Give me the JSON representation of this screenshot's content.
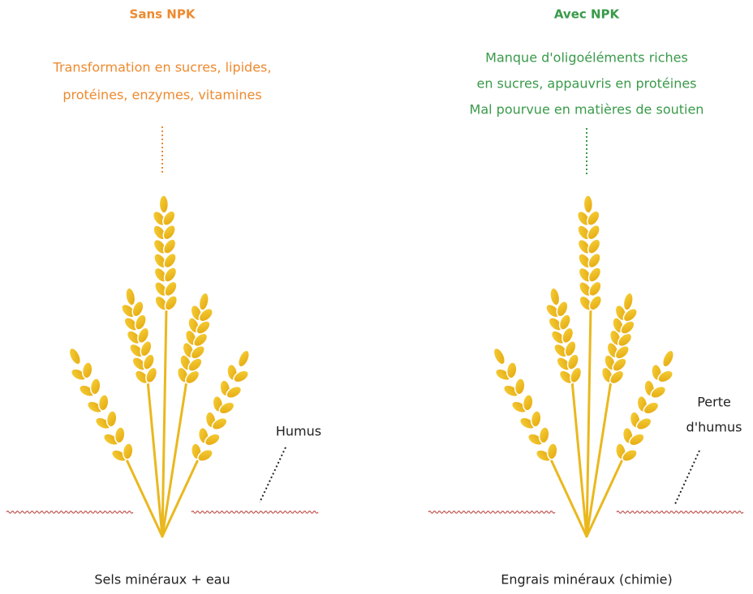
{
  "panels": [
    {
      "title": "Sans NPK",
      "description": [
        "Transformation en sucres, lipides,",
        "protéines, enzymes, vitamines"
      ],
      "soil_label": [
        "Humus"
      ],
      "caption": "Sels minéraux + eau"
    },
    {
      "title": "Avec NPK",
      "description": [
        "Manque d'oligoéléments riches",
        "en sucres, appauvris en protéines",
        "Mal pourvue en matières de soutien"
      ],
      "soil_label": [
        "Perte",
        "d'humus"
      ],
      "caption": "Engrais minéraux (chimie)"
    }
  ]
}
